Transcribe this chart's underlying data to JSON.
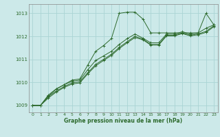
{
  "background_color": "#cce9e9",
  "grid_color": "#aad4d4",
  "line_color": "#2d6a2d",
  "xlabel": "Graphe pression niveau de la mer (hPa)",
  "xlim": [
    -0.5,
    23.5
  ],
  "ylim": [
    1008.7,
    1013.4
  ],
  "yticks": [
    1009,
    1010,
    1011,
    1012,
    1013
  ],
  "xticks": [
    0,
    1,
    2,
    3,
    4,
    5,
    6,
    7,
    8,
    9,
    10,
    11,
    12,
    13,
    14,
    15,
    16,
    17,
    18,
    19,
    20,
    21,
    22,
    23
  ],
  "series": [
    [
      1009.0,
      1009.0,
      1009.4,
      1009.7,
      1009.9,
      1010.1,
      1010.15,
      1010.75,
      1011.35,
      1011.6,
      1011.9,
      1013.0,
      1013.05,
      1013.05,
      1012.75,
      1012.15,
      1012.15,
      1012.15,
      1012.15,
      1012.15,
      1012.15,
      1012.15,
      1013.0,
      1012.5
    ],
    [
      1009.0,
      1009.0,
      1009.45,
      1009.72,
      1009.9,
      1010.05,
      1010.1,
      1010.55,
      1010.95,
      1011.15,
      1011.35,
      1011.65,
      1011.9,
      1012.1,
      1011.92,
      1011.72,
      1011.72,
      1012.1,
      1012.1,
      1012.2,
      1012.1,
      1012.15,
      1012.35,
      1012.5
    ],
    [
      1009.0,
      1009.0,
      1009.38,
      1009.62,
      1009.82,
      1009.98,
      1010.03,
      1010.42,
      1010.78,
      1011.0,
      1011.22,
      1011.52,
      1011.77,
      1012.0,
      1011.88,
      1011.65,
      1011.65,
      1012.05,
      1012.05,
      1012.15,
      1012.05,
      1012.1,
      1012.22,
      1012.46
    ],
    [
      1009.0,
      1009.0,
      1009.32,
      1009.58,
      1009.78,
      1009.93,
      1009.98,
      1010.37,
      1010.72,
      1010.95,
      1011.17,
      1011.47,
      1011.72,
      1011.95,
      1011.85,
      1011.62,
      1011.62,
      1012.02,
      1012.02,
      1012.12,
      1012.02,
      1012.07,
      1012.17,
      1012.42
    ]
  ]
}
